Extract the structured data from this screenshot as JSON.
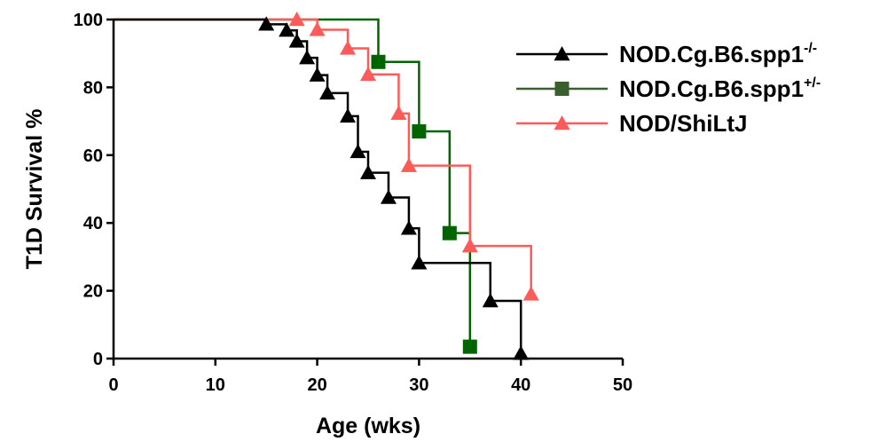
{
  "chart_data": {
    "type": "line",
    "subtype": "kaplan-meier-step",
    "xlabel": "Age (wks)",
    "ylabel": "T1D Survival %",
    "xlim": [
      0,
      50
    ],
    "ylim": [
      0,
      100
    ],
    "x_ticks": [
      "0",
      "10",
      "20",
      "30",
      "40",
      "50"
    ],
    "y_ticks": [
      "0",
      "20",
      "40",
      "60",
      "80",
      "100"
    ],
    "grid": false,
    "legend_position": "top-right",
    "series": [
      {
        "name": "NOD.Cg.B6.spp1",
        "name_sup": "-/-",
        "color": "#000000",
        "marker": "triangle",
        "x": [
          15,
          17,
          18,
          19,
          20,
          21,
          23,
          24,
          25,
          27,
          29,
          30,
          37,
          40
        ],
        "y": [
          98.6,
          96.8,
          93.6,
          88.7,
          83.6,
          78.3,
          71.5,
          61.0,
          54.8,
          47.5,
          38.4,
          28.2,
          17.0,
          1.5
        ],
        "start": 100,
        "end_x": 40
      },
      {
        "name": "NOD.Cg.B6.spp1",
        "name_sup": "+/-",
        "color": "#006400",
        "legend_color": "#3a5f2c",
        "marker": "square",
        "x": [
          26,
          30,
          33,
          35
        ],
        "y": [
          87.5,
          67.0,
          37.0,
          3.5
        ],
        "start": 100,
        "end_x": 35
      },
      {
        "name": "NOD/ShiLtJ",
        "name_sup": "",
        "color": "#ff5a5a",
        "marker": "triangle",
        "x": [
          18,
          20,
          23,
          25,
          28,
          29,
          35,
          41
        ],
        "y": [
          100,
          97.0,
          91.5,
          83.8,
          72.3,
          56.9,
          33.2,
          19.0
        ],
        "start": 100,
        "end_x": 41
      }
    ]
  }
}
